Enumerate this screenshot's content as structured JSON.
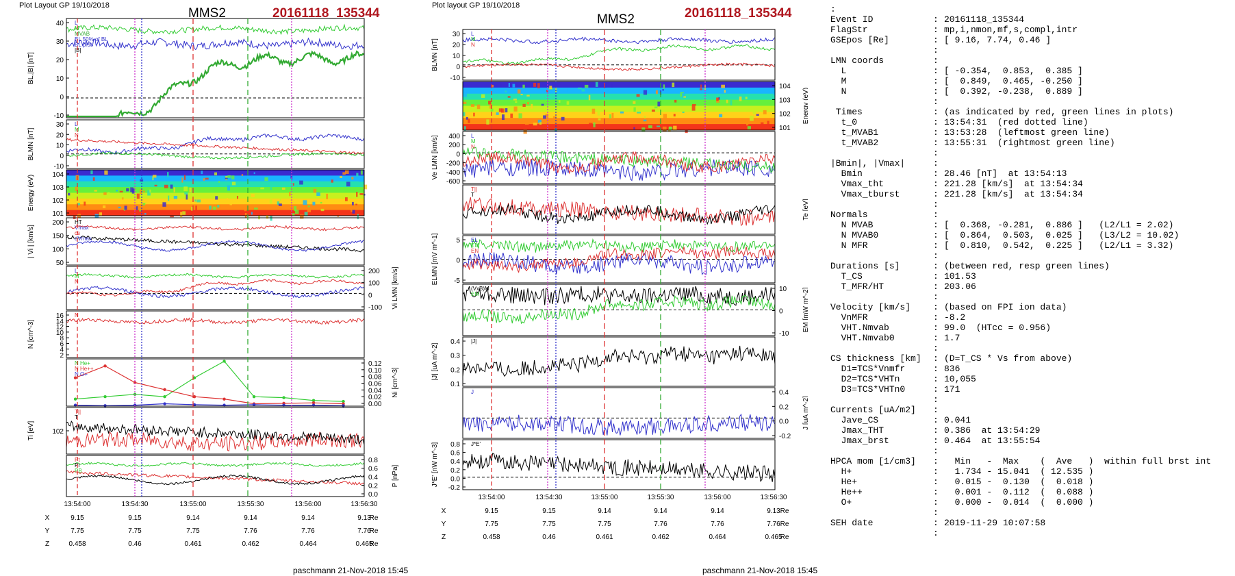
{
  "left_panel": {
    "header": "Plot Layout GP 19/10/2018",
    "spacecraft": "MMS2",
    "event": "20161118_135344",
    "footer": "paschmann 21-Nov-2018 15:45"
  },
  "mid_panel": {
    "header": "Plot layout GP 19/10/2018",
    "spacecraft": "MMS2",
    "event": "20161118_135344",
    "footer": "paschmann 21-Nov-2018 15:45"
  },
  "chart_data": [
    {
      "type": "line",
      "id": "left-column",
      "time_ticks": [
        "13:54:00",
        "13:54:30",
        "13:55:00",
        "13:55:30",
        "13:56:00",
        "13:56:30"
      ],
      "position_rows": [
        {
          "label": "X",
          "values": [
            "9.15",
            "9.15",
            "9.14",
            "9.14",
            "9.14",
            "9.13"
          ],
          "unit": "Re"
        },
        {
          "label": "Y",
          "values": [
            "7.75",
            "7.75",
            "7.75",
            "7.76",
            "7.76",
            "7.76"
          ],
          "unit": "Re"
        },
        {
          "label": "Z",
          "values": [
            "0.458",
            "0.46",
            "0.461",
            "0.462",
            "0.464",
            "0.465"
          ],
          "unit": "Re"
        }
      ],
      "panels": [
        {
          "ylabel": "BL,|B| [nT]",
          "ylim": [
            -10,
            40
          ],
          "ticks": [
            "40",
            "30",
            "20",
            "10",
            "0",
            "-10"
          ],
          "legend": [
            "L",
            "M",
            "MVAB",
            "BL 50% of BL",
            "BL prst",
            "|B|"
          ]
        },
        {
          "ylabel": "BLMN [nT]",
          "ylim": [
            -15,
            35
          ],
          "ticks": [
            "30",
            "20",
            "10",
            "0",
            "-10"
          ],
          "legend": [
            "L",
            "M",
            "N"
          ]
        },
        {
          "ylabel": "Energy (eV)",
          "ticks": [
            "10^4",
            "10^3",
            "10^2",
            "10^1"
          ],
          "type": "spectrogram"
        },
        {
          "ylabel": "| Vi | [km/s]",
          "ylim": [
            50,
            230
          ],
          "ticks": [
            "200",
            "150",
            "100",
            "50"
          ],
          "legend": [
            "HT",
            "Vmax",
            "cs",
            "dVmax"
          ]
        },
        {
          "ylabel": "Vi LMN [km/s]",
          "ylim": [
            -150,
            250
          ],
          "ticks": [
            "200",
            "100",
            "0",
            "-100"
          ],
          "legend": [
            "L",
            "M",
            "N"
          ]
        },
        {
          "ylabel": "N [cm^-3]",
          "ylim": [
            2,
            16
          ],
          "ticks": [
            "16",
            "14",
            "12",
            "10",
            "8",
            "6",
            "4",
            "2"
          ],
          "legend": [
            "N"
          ]
        },
        {
          "ylabel": "Ni [cm^-3]",
          "ylim": [
            0,
            0.12
          ],
          "ticks": [
            "0.12",
            "0.10",
            "0.08",
            "0.06",
            "0.04",
            "0.02",
            "0.00"
          ],
          "legend": [
            "N He+",
            "N He++",
            "N O+"
          ]
        },
        {
          "ylabel": "Ti [eV]",
          "ticks": [
            "10^2"
          ],
          "legend": [
            "T||",
            "T"
          ]
        },
        {
          "ylabel": "P [nPa]",
          "ylim": [
            0,
            0.9
          ],
          "ticks": [
            "0.8",
            "0.6",
            "0.4",
            "0.2",
            "0.0"
          ],
          "legend": [
            "Pt",
            "Pi",
            "PB"
          ]
        }
      ]
    },
    {
      "type": "line",
      "id": "middle-column",
      "time_ticks": [
        "13:54:00",
        "13:54:30",
        "13:55:00",
        "13:55:30",
        "13:56:00",
        "13:56:30"
      ],
      "position_rows": [
        {
          "label": "X",
          "values": [
            "9.15",
            "9.15",
            "9.14",
            "9.14",
            "9.14",
            "9.13"
          ],
          "unit": "Re"
        },
        {
          "label": "Y",
          "values": [
            "7.75",
            "7.75",
            "7.75",
            "7.76",
            "7.76",
            "7.76"
          ],
          "unit": "Re"
        },
        {
          "label": "Z",
          "values": [
            "0.458",
            "0.46",
            "0.461",
            "0.462",
            "0.464",
            "0.465"
          ],
          "unit": "Re"
        }
      ],
      "panels": [
        {
          "ylabel": "BLMN [nT]",
          "ylim": [
            -15,
            35
          ],
          "ticks": [
            "30",
            "20",
            "10",
            "0",
            "-10"
          ],
          "legend": [
            "L",
            "M",
            "N"
          ]
        },
        {
          "ylabel": "Energy (eV)",
          "ticks": [
            "10^4",
            "10^3",
            "10^2",
            "10^1"
          ],
          "type": "spectrogram"
        },
        {
          "ylabel": "Ve LMN [km/s]",
          "ylim": [
            -650,
            450
          ],
          "ticks": [
            "400",
            "200",
            "0",
            "-200",
            "-400",
            "-600"
          ],
          "legend": [
            "L",
            "M",
            "N"
          ]
        },
        {
          "ylabel": "Te [eV]",
          "ticks": [],
          "legend": [
            "T||",
            "T"
          ]
        },
        {
          "ylabel": "ELMN [mV m^-1]",
          "ylim": [
            -8,
            8
          ],
          "ticks": [
            "5",
            "0",
            "-5"
          ],
          "legend": [
            "EL",
            "EM",
            "EN"
          ]
        },
        {
          "ylabel": "EM [mW m^-2]",
          "ylim": [
            -15,
            15
          ],
          "ticks": [
            "10",
            "0",
            "-10"
          ],
          "legend": [
            "(VxB)M",
            "EM"
          ]
        },
        {
          "ylabel": "|J| [uA m^-2]",
          "ylim": [
            0,
            0.45
          ],
          "ticks": [
            "0.4",
            "0.3",
            "0.2",
            "0.1"
          ],
          "legend": [
            "|J|"
          ]
        },
        {
          "ylabel": "J [uA m^-2]",
          "ylim": [
            -0.3,
            0.45
          ],
          "ticks": [
            "0.4",
            "0.2",
            "0.0",
            "-0.2"
          ],
          "legend": [
            "J"
          ]
        },
        {
          "ylabel": "J*E' [nW m^-3]",
          "ylim": [
            -0.3,
            0.9
          ],
          "ticks": [
            "0.8",
            "0.6",
            "0.4",
            "0.2",
            "0.0",
            "-0.2"
          ],
          "legend": [
            "J*E'"
          ]
        }
      ]
    }
  ],
  "info": {
    "lines": [
      {
        "k": "",
        "v": "",
        "lead": ":"
      },
      {
        "k": "Event ID",
        "v": "20161118_135344"
      },
      {
        "k": "FlagStr",
        "v": "mp,i,nmon,mf,s,compl,intr"
      },
      {
        "k": "GSEpos [Re]",
        "v": "[ 9.16, 7.74, 0.46 ]"
      },
      {
        "k": "",
        "v": ""
      },
      {
        "k": "LMN coords",
        "v": ""
      },
      {
        "k": "  L",
        "v": "[ -0.354,  0.853,  0.385 ]"
      },
      {
        "k": "  M",
        "v": "[  0.849,  0.465, -0.250 ]"
      },
      {
        "k": "  N",
        "v": "[  0.392, -0.238,  0.889 ]"
      },
      {
        "k": "",
        "v": ""
      },
      {
        "k": " Times",
        "v": "(as indicated by red, green lines in plots)"
      },
      {
        "k": "  t_0",
        "v": "13:54:31  (red dotted line)"
      },
      {
        "k": "  t_MVAB1",
        "v": "13:53:28  (leftmost green line)"
      },
      {
        "k": "  t_MVAB2",
        "v": "13:55:31  (rightmost green line)"
      },
      {
        "k": "",
        "v": ""
      },
      {
        "k": "|Bmin|, |Vmax|",
        "v": ""
      },
      {
        "k": "  Bmin",
        "v": "28.46 [nT]  at 13:54:13"
      },
      {
        "k": "  Vmax_tht",
        "v": "221.28 [km/s]  at 13:54:34"
      },
      {
        "k": "  Vmax_tburst",
        "v": "221.28 [km/s]  at 13:54:34"
      },
      {
        "k": "",
        "v": ""
      },
      {
        "k": "Normals",
        "v": ""
      },
      {
        "k": "  N MVAB",
        "v": "[  0.368, -0.281,  0.886 ]   (L2/L1 = 2.02)"
      },
      {
        "k": "  N MVAB0",
        "v": "[  0.864,  0.503,  0.025 ]   (L3/L2 = 10.02)"
      },
      {
        "k": "  N MFR",
        "v": "[  0.810,  0.542,  0.225 ]   (L2/L1 = 3.32)"
      },
      {
        "k": "",
        "v": ""
      },
      {
        "k": "Durations [s]",
        "v": "(between red, resp green lines)"
      },
      {
        "k": "  T_CS",
        "v": "101.53"
      },
      {
        "k": "  T_MFR/HT",
        "v": "203.06"
      },
      {
        "k": "",
        "v": ""
      },
      {
        "k": "Velocity [km/s]",
        "v": "(based on FPI ion data)"
      },
      {
        "k": "  VnMFR",
        "v": "-8.2"
      },
      {
        "k": "  VHT.Nmvab",
        "v": "99.0  (HTcc = 0.956)"
      },
      {
        "k": "  VHT.Nmvab0",
        "v": "1.7"
      },
      {
        "k": "",
        "v": ""
      },
      {
        "k": "CS thickness [km]",
        "v": "(D=T_CS * Vs from above)"
      },
      {
        "k": "  D1=TCS*Vnmfr",
        "v": "836"
      },
      {
        "k": "  D2=TCS*VHTn",
        "v": "10,055"
      },
      {
        "k": "  D3=TCS*VHTn0",
        "v": "171"
      },
      {
        "k": "",
        "v": ""
      },
      {
        "k": "Currents [uA/m2]",
        "v": ""
      },
      {
        "k": "  Jave_CS",
        "v": "0.041"
      },
      {
        "k": "  Jmax_THT",
        "v": "0.386  at 13:54:29"
      },
      {
        "k": "  Jmax_brst",
        "v": "0.464  at 13:55:54"
      },
      {
        "k": "",
        "v": ""
      },
      {
        "k": "HPCA mom [1/cm3]",
        "v": "  Min   -  Max    (  Ave   )  within full brst int"
      },
      {
        "k": "  H+",
        "v": "  1.734 - 15.041  ( 12.535 )"
      },
      {
        "k": "  He+",
        "v": "  0.015 -  0.130  (  0.018 )"
      },
      {
        "k": "  He++",
        "v": "  0.001 -  0.112  (  0.088 )"
      },
      {
        "k": "  O+",
        "v": "  0.000 -  0.014  (  0.000 )"
      },
      {
        "k": "",
        "v": ""
      },
      {
        "k": "SEH date",
        "v": "2019-11-29 10:07:58"
      },
      {
        "k": "",
        "v": ""
      }
    ]
  }
}
